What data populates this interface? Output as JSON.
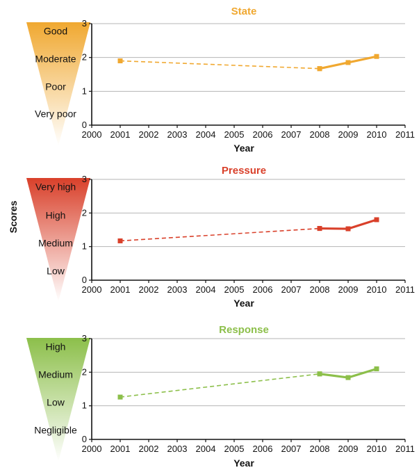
{
  "ylabel": "Scores",
  "chart_data": [
    {
      "type": "line",
      "title": "State",
      "color": "#f0a830",
      "xlabel": "Year",
      "xlim": [
        2000,
        2011
      ],
      "ylim": [
        0,
        3
      ],
      "x_ticks": [
        "2000",
        "2001",
        "2002",
        "2003",
        "2004",
        "2005",
        "2006",
        "2007",
        "2008",
        "2009",
        "2010",
        "2011"
      ],
      "y_ticks": [
        "0",
        "1",
        "2",
        "3"
      ],
      "grid": true,
      "scale_labels": [
        "Good",
        "Moderate",
        "Poor",
        "Very poor"
      ],
      "series": [
        {
          "x": [
            2001,
            2008
          ],
          "y": [
            1.9,
            1.67
          ],
          "style": "dashed"
        },
        {
          "x": [
            2008,
            2009,
            2010
          ],
          "y": [
            1.67,
            1.85,
            2.03
          ],
          "style": "solid"
        }
      ]
    },
    {
      "type": "line",
      "title": "Pressure",
      "color": "#d9402a",
      "xlabel": "Year",
      "xlim": [
        2000,
        2011
      ],
      "ylim": [
        0,
        3
      ],
      "x_ticks": [
        "2000",
        "2001",
        "2002",
        "2003",
        "2004",
        "2005",
        "2006",
        "2007",
        "2008",
        "2009",
        "2010",
        "2011"
      ],
      "y_ticks": [
        "0",
        "1",
        "2",
        "3"
      ],
      "grid": true,
      "scale_labels": [
        "Very high",
        "High",
        "Medium",
        "Low"
      ],
      "series": [
        {
          "x": [
            2001,
            2008
          ],
          "y": [
            1.17,
            1.54
          ],
          "style": "dashed"
        },
        {
          "x": [
            2008,
            2009,
            2010
          ],
          "y": [
            1.54,
            1.53,
            1.8
          ],
          "style": "solid"
        }
      ]
    },
    {
      "type": "line",
      "title": "Response",
      "color": "#8cbf4a",
      "xlabel": "Year",
      "xlim": [
        2000,
        2011
      ],
      "ylim": [
        0,
        3
      ],
      "x_ticks": [
        "2000",
        "2001",
        "2002",
        "2003",
        "2004",
        "2005",
        "2006",
        "2007",
        "2008",
        "2009",
        "2010",
        "2011"
      ],
      "y_ticks": [
        "0",
        "1",
        "2",
        "3"
      ],
      "grid": true,
      "scale_labels": [
        "High",
        "Medium",
        "Low",
        "Negligible"
      ],
      "series": [
        {
          "x": [
            2001,
            2008
          ],
          "y": [
            1.26,
            1.95
          ],
          "style": "dashed"
        },
        {
          "x": [
            2008,
            2009,
            2010
          ],
          "y": [
            1.95,
            1.84,
            2.1
          ],
          "style": "solid"
        }
      ]
    }
  ]
}
